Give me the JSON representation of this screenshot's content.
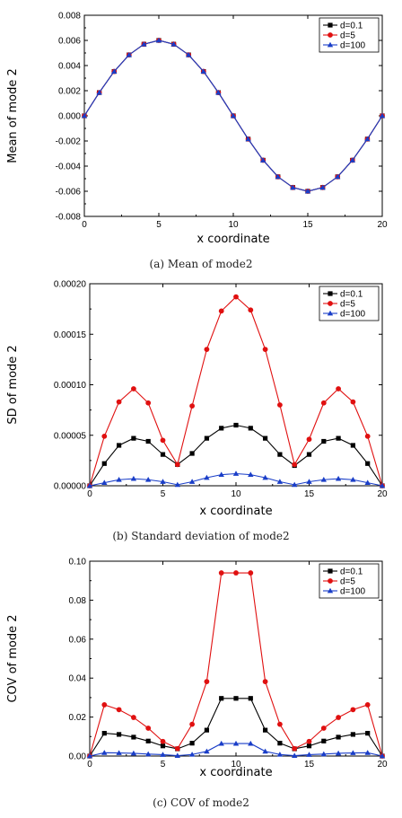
{
  "chart_data": [
    {
      "type": "line",
      "caption": "(a) Mean of mode2",
      "xlabel": "x coordinate",
      "ylabel": "Mean of mode 2",
      "xlim": [
        0,
        20
      ],
      "ylim": [
        -0.008,
        0.008
      ],
      "xticks": [
        "0",
        "5",
        "10",
        "15",
        "20"
      ],
      "yticks": [
        "-0.008",
        "-0.006",
        "-0.004",
        "-0.002",
        "0.000",
        "0.002",
        "0.004",
        "0.006",
        "0.008"
      ],
      "legend_position": "top-right",
      "x": [
        0,
        1,
        2,
        3,
        4,
        5,
        6,
        7,
        8,
        9,
        10,
        11,
        12,
        13,
        14,
        15,
        16,
        17,
        18,
        19,
        20
      ],
      "series": [
        {
          "name": "d=0.1",
          "color": "#000000",
          "marker": "square",
          "values": [
            0,
            0.00185,
            0.00353,
            0.00485,
            0.0057,
            0.006,
            0.0057,
            0.00485,
            0.00353,
            0.00185,
            0,
            -0.00185,
            -0.00353,
            -0.00485,
            -0.0057,
            -0.006,
            -0.0057,
            -0.00485,
            -0.00353,
            -0.00185,
            0
          ]
        },
        {
          "name": "d=5",
          "color": "#e01010",
          "marker": "circle",
          "values": [
            0,
            0.00185,
            0.00353,
            0.00485,
            0.0057,
            0.006,
            0.0057,
            0.00485,
            0.00353,
            0.00185,
            0,
            -0.00185,
            -0.00353,
            -0.00485,
            -0.0057,
            -0.006,
            -0.0057,
            -0.00485,
            -0.00353,
            -0.00185,
            0
          ]
        },
        {
          "name": "d=100",
          "color": "#1a3ec8",
          "marker": "triangle",
          "values": [
            0,
            0.00185,
            0.00353,
            0.00485,
            0.0057,
            0.006,
            0.0057,
            0.00485,
            0.00353,
            0.00185,
            0,
            -0.00185,
            -0.00353,
            -0.00485,
            -0.0057,
            -0.006,
            -0.0057,
            -0.00485,
            -0.00353,
            -0.00185,
            0
          ]
        }
      ]
    },
    {
      "type": "line",
      "caption": "(b) Standard deviation of mode2",
      "xlabel": "x coordinate",
      "ylabel": "SD of mode 2",
      "xlim": [
        0,
        20
      ],
      "ylim": [
        0,
        0.0002
      ],
      "xticks": [
        "0",
        "5",
        "10",
        "15",
        "20"
      ],
      "yticks": [
        "0.00000",
        "0.00005",
        "0.00010",
        "0.00015",
        "0.00020"
      ],
      "legend_position": "top-right",
      "x": [
        0,
        1,
        2,
        3,
        4,
        5,
        6,
        7,
        8,
        9,
        10,
        11,
        12,
        13,
        14,
        15,
        16,
        17,
        18,
        19,
        20
      ],
      "series": [
        {
          "name": "d=0.1",
          "color": "#000000",
          "marker": "square",
          "values": [
            0,
            2.2e-05,
            4e-05,
            4.7e-05,
            4.4e-05,
            3.1e-05,
            2.1e-05,
            3.2e-05,
            4.7e-05,
            5.7e-05,
            6e-05,
            5.7e-05,
            4.7e-05,
            3.1e-05,
            2e-05,
            3.1e-05,
            4.4e-05,
            4.7e-05,
            4e-05,
            2.2e-05,
            0
          ]
        },
        {
          "name": "d=5",
          "color": "#e01010",
          "marker": "circle",
          "values": [
            0,
            4.9e-05,
            8.3e-05,
            9.6e-05,
            8.2e-05,
            4.5e-05,
            2.1e-05,
            7.9e-05,
            0.000135,
            0.000173,
            0.000187,
            0.000174,
            0.000135,
            8e-05,
            2.1e-05,
            4.6e-05,
            8.2e-05,
            9.6e-05,
            8.3e-05,
            4.9e-05,
            0
          ]
        },
        {
          "name": "d=100",
          "color": "#1a3ec8",
          "marker": "triangle",
          "values": [
            0,
            3e-06,
            6e-06,
            7e-06,
            6e-06,
            4e-06,
            1e-06,
            4e-06,
            8e-06,
            1.1e-05,
            1.2e-05,
            1.1e-05,
            8e-06,
            4e-06,
            1e-06,
            4e-06,
            6e-06,
            7e-06,
            6e-06,
            3e-06,
            0
          ]
        }
      ]
    },
    {
      "type": "line",
      "caption": "(c) COV of mode2",
      "xlabel": "x coordinate",
      "ylabel": "COV of mode 2",
      "xlim": [
        0,
        20
      ],
      "ylim": [
        0,
        0.1
      ],
      "xticks": [
        "0",
        "5",
        "10",
        "15",
        "20"
      ],
      "yticks": [
        "0.00",
        "0.02",
        "0.04",
        "0.06",
        "0.08",
        "0.10"
      ],
      "legend_position": "top-right",
      "x": [
        0,
        1,
        2,
        3,
        4,
        5,
        6,
        7,
        8,
        9,
        10,
        11,
        12,
        13,
        14,
        15,
        16,
        17,
        18,
        19,
        20
      ],
      "series": [
        {
          "name": "d=0.1",
          "color": "#000000",
          "marker": "square",
          "values": [
            0,
            0.0117,
            0.0111,
            0.0097,
            0.0077,
            0.0052,
            0.0037,
            0.0066,
            0.0133,
            0.0296,
            0.0296,
            0.0296,
            0.0133,
            0.0066,
            0.0037,
            0.0052,
            0.0077,
            0.0097,
            0.0111,
            0.0117,
            0
          ]
        },
        {
          "name": "d=5",
          "color": "#e01010",
          "marker": "circle",
          "values": [
            0,
            0.0263,
            0.0238,
            0.0198,
            0.0143,
            0.0075,
            0.0038,
            0.0163,
            0.0382,
            0.094,
            0.094,
            0.094,
            0.0382,
            0.0163,
            0.0038,
            0.0075,
            0.0143,
            0.0198,
            0.0238,
            0.0263,
            0
          ]
        },
        {
          "name": "d=100",
          "color": "#1a3ec8",
          "marker": "triangle",
          "values": [
            0,
            0.0017,
            0.0016,
            0.0014,
            0.001,
            0.0007,
            0.0002,
            0.0008,
            0.0024,
            0.0064,
            0.0064,
            0.0064,
            0.0024,
            0.0008,
            0.0002,
            0.0007,
            0.001,
            0.0014,
            0.0016,
            0.0017,
            0
          ]
        }
      ]
    }
  ]
}
